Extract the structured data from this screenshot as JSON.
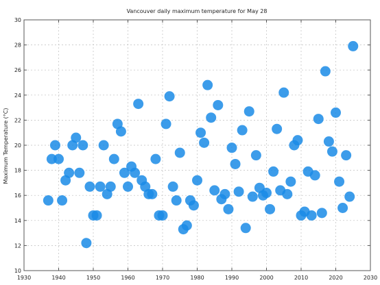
{
  "chart_data": {
    "type": "scatter",
    "title": "Vancouver daily maximum temperature for May 28",
    "xlabel": "",
    "ylabel": "Maximum Temperature (°C)",
    "xlim": [
      1930,
      2030
    ],
    "ylim": [
      10,
      30
    ],
    "xticks": [
      1930,
      1940,
      1950,
      1960,
      1970,
      1980,
      1990,
      2000,
      2010,
      2020,
      2030
    ],
    "yticks": [
      10,
      12,
      14,
      16,
      18,
      20,
      22,
      24,
      26,
      28,
      30
    ],
    "grid": true,
    "marker_color": "#1a8be6",
    "series": [
      {
        "x": [
          1937,
          1938,
          1939,
          1940,
          1941,
          1942,
          1943,
          1944,
          1945,
          1946,
          1947,
          1948,
          1949,
          1950,
          1951,
          1952,
          1953,
          1954,
          1955,
          1956,
          1957,
          1958,
          1959,
          1960,
          1961,
          1962,
          1963,
          1964,
          1965,
          1966,
          1967,
          1968,
          1969,
          1970,
          1971,
          1972,
          1973,
          1974,
          1975,
          1976,
          1977,
          1978,
          1979,
          1980,
          1981,
          1982,
          1983,
          1984,
          1985,
          1986,
          1987,
          1988,
          1989,
          1990,
          1991,
          1992,
          1993,
          1994,
          1995,
          1996,
          1997,
          1998,
          1999,
          2000,
          2001,
          2002,
          2003,
          2004,
          2005,
          2006,
          2007,
          2008,
          2009,
          2010,
          2011,
          2012,
          2013,
          2014,
          2015,
          2016,
          2017,
          2018,
          2019,
          2020,
          2021,
          2022,
          2023,
          2024,
          2025
        ],
        "y": [
          15.6,
          18.9,
          20.0,
          18.9,
          15.6,
          17.2,
          17.8,
          20.0,
          20.6,
          17.8,
          20.0,
          12.2,
          16.7,
          14.4,
          14.4,
          16.7,
          20.0,
          16.1,
          16.7,
          18.9,
          21.7,
          21.1,
          17.8,
          16.7,
          18.3,
          17.8,
          23.3,
          17.2,
          16.7,
          16.1,
          16.1,
          18.9,
          14.4,
          14.4,
          21.7,
          23.9,
          16.7,
          15.6,
          19.4,
          13.3,
          13.6,
          15.6,
          15.2,
          17.2,
          21.0,
          20.2,
          24.8,
          22.2,
          16.4,
          23.2,
          15.7,
          16.1,
          14.9,
          19.8,
          18.5,
          16.3,
          21.2,
          13.4,
          22.7,
          15.9,
          19.2,
          16.6,
          16.0,
          16.2,
          14.9,
          17.9,
          21.3,
          16.4,
          24.2,
          16.1,
          17.1,
          20.0,
          20.4,
          14.4,
          14.7,
          17.9,
          14.4,
          17.6,
          22.1,
          14.6,
          25.9,
          20.3,
          19.5,
          22.6,
          17.1,
          15.0,
          19.2,
          15.9,
          27.9
        ]
      }
    ]
  }
}
